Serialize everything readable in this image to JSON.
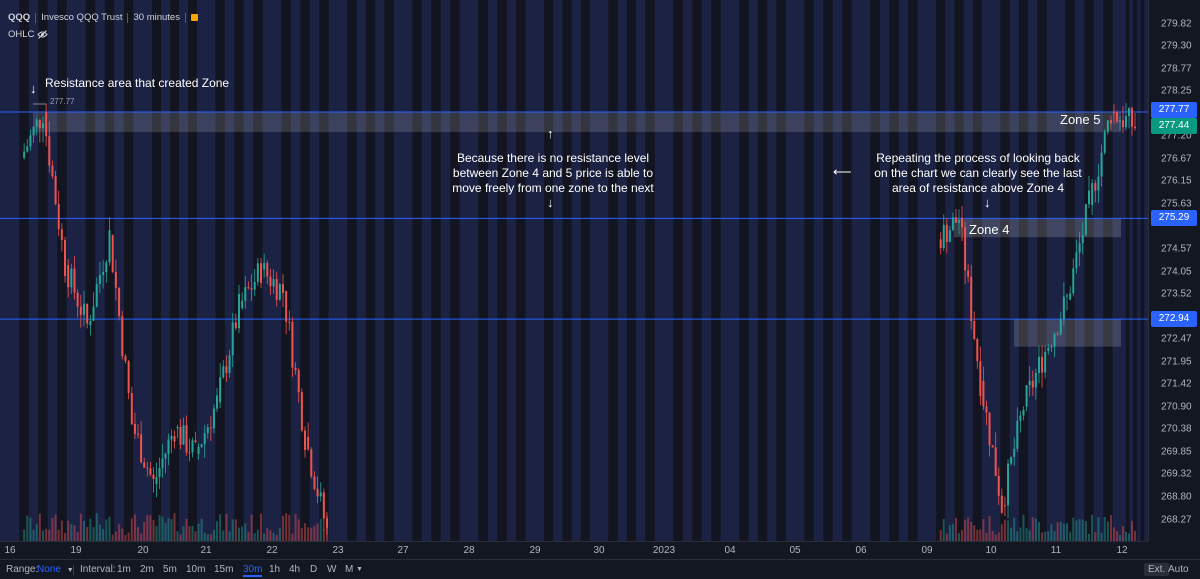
{
  "header": {
    "symbol": "QQQ",
    "name": "Invesco QQQ Trust",
    "interval": "30 minutes",
    "indicator": "OHLC"
  },
  "price_axis": {
    "ticks": [
      "279.82",
      "279.30",
      "278.77",
      "278.25",
      "277.20",
      "276.67",
      "276.15",
      "275.63",
      "274.57",
      "274.05",
      "273.52",
      "272.47",
      "271.95",
      "271.42",
      "270.90",
      "270.38",
      "269.85",
      "269.32",
      "268.80",
      "268.27"
    ],
    "badges": [
      {
        "value": "277.77",
        "color": "#2962ff"
      },
      {
        "value": "277.44",
        "color": "#089981"
      },
      {
        "value": "275.29",
        "color": "#2962ff"
      },
      {
        "value": "272.94",
        "color": "#2962ff"
      }
    ]
  },
  "time_axis": {
    "labels": [
      "16",
      "19",
      "20",
      "21",
      "22",
      "23",
      "27",
      "28",
      "29",
      "30",
      "2023",
      "04",
      "05",
      "06",
      "09",
      "10",
      "11",
      "12"
    ]
  },
  "annotations": {
    "top_left": "Resistance area that created Zone",
    "small_marker": "277.77",
    "middle": [
      "Because there is no resistance level",
      "between Zone 4 and 5 price is able to",
      "move freely from one zone to the next"
    ],
    "right": [
      "Repeating the process of looking back",
      "on the chart we can clearly see the last",
      "area of resistance above Zone 4"
    ],
    "zone5": "Zone 5",
    "zone4": "Zone 4"
  },
  "bottom_bar": {
    "range_label": "Range:",
    "range_value": "None",
    "interval_label": "Interval:",
    "intervals": [
      "1m",
      "2m",
      "5m",
      "10m",
      "15m",
      "30m",
      "1h",
      "4h",
      "D",
      "W",
      "M"
    ],
    "active_interval": "30m",
    "ext": "Ext.",
    "auto": "Auto"
  },
  "colors": {
    "up": "#26a69a",
    "down": "#ef5350",
    "line": "#2962ff",
    "band": "#1e2348"
  },
  "chart_data": {
    "type": "candlestick",
    "x_labels": [
      "16",
      "19",
      "20",
      "21",
      "22",
      "23",
      "27",
      "28",
      "29",
      "30",
      "2023",
      "04",
      "05",
      "06",
      "09",
      "10",
      "11",
      "12"
    ],
    "y_ticks": [
      279.82,
      279.3,
      278.77,
      278.25,
      277.2,
      276.67,
      276.15,
      275.63,
      274.57,
      274.05,
      273.52,
      272.47,
      271.95,
      271.42,
      270.9,
      270.38,
      269.85,
      269.32,
      268.8,
      268.27
    ],
    "ylim": [
      268.0,
      280.0
    ],
    "horizontal_lines": [
      277.77,
      275.29,
      272.94
    ],
    "zones": [
      {
        "label": "Zone 5",
        "low": 277.3,
        "high": 277.77
      },
      {
        "label": "Zone 4",
        "low": 274.85,
        "high": 275.29
      },
      {
        "label": "",
        "low": 272.3,
        "high": 272.94
      }
    ],
    "last_price": 277.44,
    "close_path": [
      {
        "x": "16",
        "close": 276.7
      },
      {
        "x": "16",
        "close": 277.77
      },
      {
        "x": "16",
        "close": 274.2
      },
      {
        "x": "19",
        "close": 272.8
      },
      {
        "x": "19",
        "close": 274.9
      },
      {
        "x": "19",
        "close": 270.5
      },
      {
        "x": "20",
        "close": 269.1
      },
      {
        "x": "20",
        "close": 270.4
      },
      {
        "x": "20",
        "close": 269.8
      },
      {
        "x": "21",
        "close": 271.0
      },
      {
        "x": "21",
        "close": 273.2
      },
      {
        "x": "21",
        "close": 274.1
      },
      {
        "x": "22",
        "close": 273.6
      },
      {
        "x": "22",
        "close": 270.2
      },
      {
        "x": "22",
        "close": 268.0
      },
      {
        "x": "09",
        "close": 274.8
      },
      {
        "x": "09",
        "close": 275.3
      },
      {
        "x": "09",
        "close": 271.5
      },
      {
        "x": "10",
        "close": 268.6
      },
      {
        "x": "10",
        "close": 270.9
      },
      {
        "x": "10",
        "close": 272.2
      },
      {
        "x": "11",
        "close": 273.4
      },
      {
        "x": "11",
        "close": 275.6
      },
      {
        "x": "11",
        "close": 277.77
      },
      {
        "x": "12",
        "close": 277.44
      }
    ]
  }
}
